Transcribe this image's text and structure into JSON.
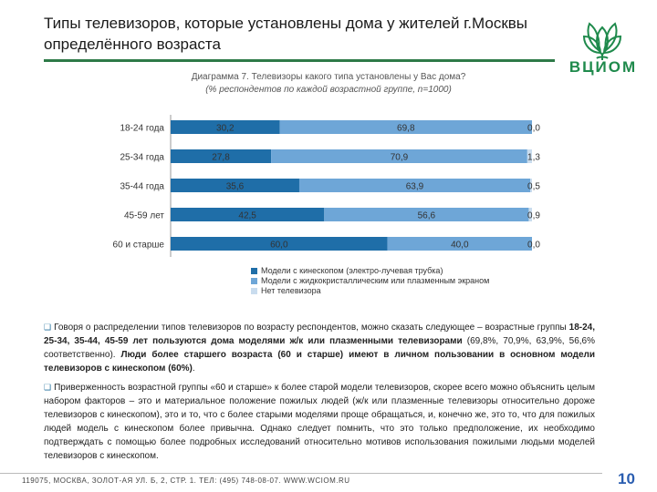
{
  "slide": {
    "title": "Типы телевизоров, которые установлены дома у жителей г.Москвы определённого возраста",
    "logo_text": "ВЦИОМ",
    "page_number": "10",
    "footer": "119075, МОСКВА, ЗОЛОТ-АЯ УЛ. Б, 2, СТР. 1. ТЕЛ: (495) 748-08-07. WWW.WCIOM.RU"
  },
  "caption": {
    "prefix": "Диаграмма 7.",
    "question": "Телевизоры какого типа установлены у Вас дома?",
    "subtitle": "(% респондентов по каждой возрастной группе, n=1000)"
  },
  "chart_data": {
    "type": "bar",
    "orientation": "horizontal",
    "stacked": true,
    "title": "Телевизоры какого типа установлены у Вас дома?",
    "subtitle": "(% респондентов по каждой возрастной группе, n=1000)",
    "categories": [
      "18-24 года",
      "25-34 года",
      "35-44 года",
      "45-59 лет",
      "60 и старше"
    ],
    "series": [
      {
        "name": "Модели с кинескопом (электро-лучевая трубка)",
        "values": [
          30.2,
          27.8,
          35.6,
          42.5,
          60.0
        ],
        "color": "#1f6ea8"
      },
      {
        "name": "Модели с жидкокристаллическим или плазменным экраном",
        "values": [
          69.8,
          70.9,
          63.9,
          56.6,
          40.0
        ],
        "color": "#6ea6d7"
      },
      {
        "name": "Нет телевизора",
        "values": [
          0.0,
          1.3,
          0.5,
          0.9,
          0.0
        ],
        "color": "#c9dcee"
      }
    ],
    "value_labels": [
      [
        "30,2",
        "69,8",
        "0,0"
      ],
      [
        "27,8",
        "70,9",
        "1,3"
      ],
      [
        "35,6",
        "63,9",
        "0,5"
      ],
      [
        "42,5",
        "56,6",
        "0,9"
      ],
      [
        "60,0",
        "40,0",
        "0,0"
      ]
    ],
    "xlim": [
      0,
      100
    ],
    "legend_position": "bottom"
  },
  "paragraph1": {
    "lead": "Говоря о распределении типов телевизоров по возрасту респондентов, можно сказать следующее – возрастные группы ",
    "groups": "18-24, 25-34, 35-44, 45-59 лет пользуются дома моделями ж/к или плазменными телевизорами",
    "percents": " (69,8%, 70,9%, 63,9%, 56,6% соответственно). ",
    "elder": "Люди более старшего возраста (60 и старше) имеют в личном пользовании в основном модели телевизоров с кинескопом (60%)",
    "end": "."
  },
  "paragraph2": {
    "text": "Приверженность возрастной группы «60 и старше» к более старой модели телевизоров, скорее всего можно объяснить целым набором факторов – это и материальное положение пожилых людей (ж/к или плазменные телевизоры относительно дороже телевизоров с кинескопом), это и то, что с более старыми моделями проще обращаться, и, конечно же, это то, что для пожилых людей модель с кинескопом более привычна. Однако следует помнить, что это только предположение, их необходимо подтверждать с помощью более подробных исследований относительно мотивов использования пожилыми людьми моделей телевизоров с кинескопом."
  }
}
